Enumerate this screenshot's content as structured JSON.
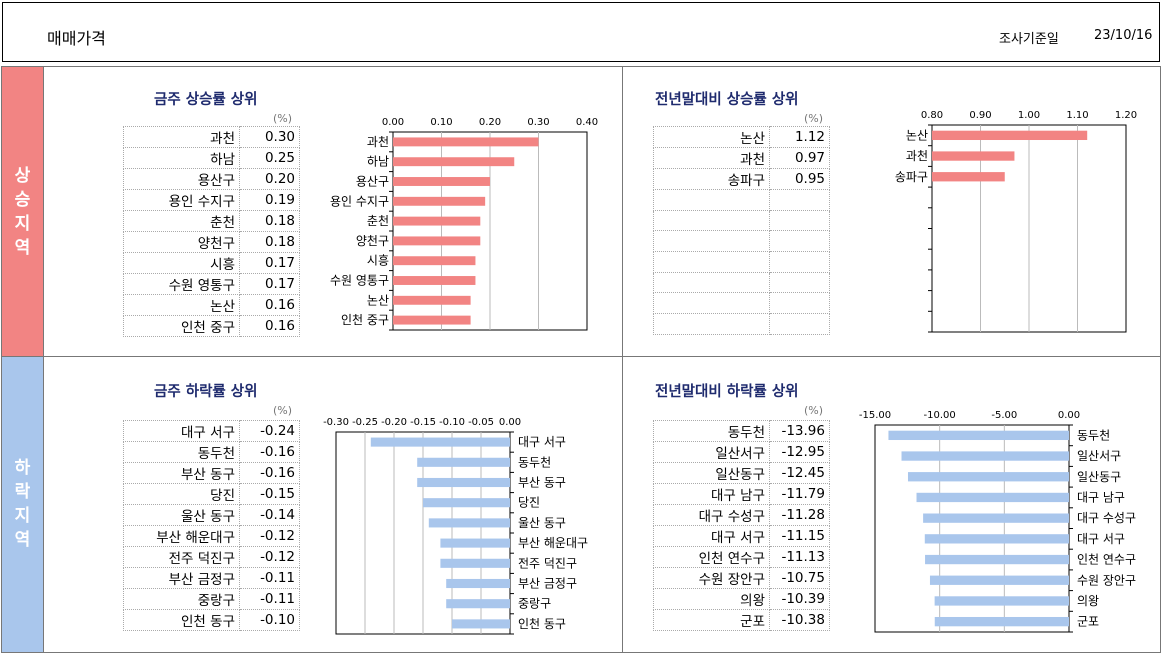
{
  "header": {
    "title": "매매가격",
    "date_label": "조사기준일",
    "date_value": "23/10/16"
  },
  "side": {
    "rise": "상승지역",
    "fall": "하락지역"
  },
  "colors": {
    "rise_bar": "#f28483",
    "fall_bar": "#a9c6ec",
    "title": "#1f2b6e"
  },
  "unit": "(%)",
  "panels": {
    "weekly_rise": {
      "title": "금주 상승률 상위",
      "rows": [
        {
          "name": "과천",
          "value": "0.30"
        },
        {
          "name": "하남",
          "value": "0.25"
        },
        {
          "name": "용산구",
          "value": "0.20"
        },
        {
          "name": "용인 수지구",
          "value": "0.19"
        },
        {
          "name": "춘천",
          "value": "0.18"
        },
        {
          "name": "양천구",
          "value": "0.18"
        },
        {
          "name": "시흥",
          "value": "0.17"
        },
        {
          "name": "수원 영통구",
          "value": "0.17"
        },
        {
          "name": "논산",
          "value": "0.16"
        },
        {
          "name": "인천 중구",
          "value": "0.16"
        }
      ]
    },
    "ytd_rise": {
      "title": "전년말대비 상승률 상위",
      "rows": [
        {
          "name": "논산",
          "value": "1.12"
        },
        {
          "name": "과천",
          "value": "0.97"
        },
        {
          "name": "송파구",
          "value": "0.95"
        },
        {
          "name": "",
          "value": ""
        },
        {
          "name": "",
          "value": ""
        },
        {
          "name": "",
          "value": ""
        },
        {
          "name": "",
          "value": ""
        },
        {
          "name": "",
          "value": ""
        },
        {
          "name": "",
          "value": ""
        },
        {
          "name": "",
          "value": ""
        }
      ]
    },
    "weekly_fall": {
      "title": "금주 하락률 상위",
      "rows": [
        {
          "name": "대구 서구",
          "value": "-0.24"
        },
        {
          "name": "동두천",
          "value": "-0.16"
        },
        {
          "name": "부산 동구",
          "value": "-0.16"
        },
        {
          "name": "당진",
          "value": "-0.15"
        },
        {
          "name": "울산 동구",
          "value": "-0.14"
        },
        {
          "name": "부산 해운대구",
          "value": "-0.12"
        },
        {
          "name": "전주 덕진구",
          "value": "-0.12"
        },
        {
          "name": "부산 금정구",
          "value": "-0.11"
        },
        {
          "name": "중랑구",
          "value": "-0.11"
        },
        {
          "name": "인천 동구",
          "value": "-0.10"
        }
      ]
    },
    "ytd_fall": {
      "title": "전년말대비 하락률 상위",
      "rows": [
        {
          "name": "동두천",
          "value": "-13.96"
        },
        {
          "name": "일산서구",
          "value": "-12.95"
        },
        {
          "name": "일산동구",
          "value": "-12.45"
        },
        {
          "name": "대구 남구",
          "value": "-11.79"
        },
        {
          "name": "대구 수성구",
          "value": "-11.28"
        },
        {
          "name": "대구 서구",
          "value": "-11.15"
        },
        {
          "name": "인천 연수구",
          "value": "-11.13"
        },
        {
          "name": "수원 장안구",
          "value": "-10.75"
        },
        {
          "name": "의왕",
          "value": "-10.39"
        },
        {
          "name": "군포",
          "value": "-10.38"
        }
      ]
    }
  },
  "chart_data": [
    {
      "id": "weekly_rise",
      "type": "bar",
      "orientation": "horizontal",
      "categories": [
        "과천",
        "하남",
        "용산구",
        "용인 수지구",
        "춘천",
        "양천구",
        "시흥",
        "수원 영통구",
        "논산",
        "인천 중구"
      ],
      "values": [
        0.3,
        0.25,
        0.2,
        0.19,
        0.18,
        0.18,
        0.17,
        0.17,
        0.16,
        0.16
      ],
      "xlim": [
        0,
        0.4
      ],
      "ticks": [
        "0.00",
        "0.10",
        "0.20",
        "0.30",
        "0.40"
      ],
      "tick_values": [
        0,
        0.1,
        0.2,
        0.3,
        0.4
      ],
      "label_side": "left",
      "color": "#f28483"
    },
    {
      "id": "ytd_rise",
      "type": "bar",
      "orientation": "horizontal",
      "categories": [
        "논산",
        "과천",
        "송파구",
        "",
        "",
        "",
        "",
        "",
        "",
        ""
      ],
      "values": [
        1.12,
        0.97,
        0.95,
        null,
        null,
        null,
        null,
        null,
        null,
        null
      ],
      "xlim": [
        0.8,
        1.2
      ],
      "ticks": [
        "0.80",
        "0.90",
        "1.00",
        "1.10",
        "1.20"
      ],
      "tick_values": [
        0.8,
        0.9,
        1.0,
        1.1,
        1.2
      ],
      "label_side": "left",
      "color": "#f28483"
    },
    {
      "id": "weekly_fall",
      "type": "bar",
      "orientation": "horizontal",
      "categories": [
        "대구 서구",
        "동두천",
        "부산 동구",
        "당진",
        "울산 동구",
        "부산 해운대구",
        "전주 덕진구",
        "부산 금정구",
        "중랑구",
        "인천 동구"
      ],
      "values": [
        -0.24,
        -0.16,
        -0.16,
        -0.15,
        -0.14,
        -0.12,
        -0.12,
        -0.11,
        -0.11,
        -0.1
      ],
      "xlim": [
        -0.3,
        0.0
      ],
      "ticks": [
        "-0.30",
        "-0.25",
        "-0.20",
        "-0.15",
        "-0.10",
        "-0.05",
        "0.00"
      ],
      "tick_values": [
        -0.3,
        -0.25,
        -0.2,
        -0.15,
        -0.1,
        -0.05,
        0
      ],
      "label_side": "right",
      "color": "#a9c6ec"
    },
    {
      "id": "ytd_fall",
      "type": "bar",
      "orientation": "horizontal",
      "categories": [
        "동두천",
        "일산서구",
        "일산동구",
        "대구 남구",
        "대구 수성구",
        "대구 서구",
        "인천 연수구",
        "수원 장안구",
        "의왕",
        "군포"
      ],
      "values": [
        -13.96,
        -12.95,
        -12.45,
        -11.79,
        -11.28,
        -11.15,
        -11.13,
        -10.75,
        -10.39,
        -10.38
      ],
      "xlim": [
        -15.0,
        0.0
      ],
      "ticks": [
        "-15.00",
        "-10.00",
        "-5.00",
        "0.00"
      ],
      "tick_values": [
        -15,
        -10,
        -5,
        0
      ],
      "label_side": "right",
      "color": "#a9c6ec"
    }
  ]
}
